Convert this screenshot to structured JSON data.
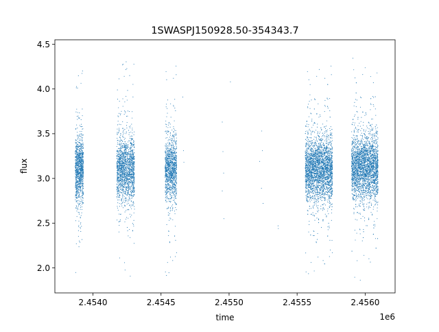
{
  "chart_data": {
    "type": "scatter",
    "title": "1SWASPJ150928.50-354343.7",
    "xlabel": "time",
    "ylabel": "flux",
    "x_offset_label": "1e6",
    "x_scale_factor": 1000000,
    "xlim": [
      2453720,
      2456220
    ],
    "ylim": [
      1.72,
      4.55
    ],
    "x_ticks": [
      2.454,
      2.4545,
      2.455,
      2.4555,
      2.456
    ],
    "x_tick_labels": [
      "2.4540",
      "2.4545",
      "2.4550",
      "2.4555",
      "2.4560"
    ],
    "y_ticks": [
      2.0,
      2.5,
      3.0,
      3.5,
      4.0,
      4.5
    ],
    "y_tick_labels": [
      "2.0",
      "2.5",
      "3.0",
      "3.5",
      "4.0",
      "4.5"
    ],
    "grid": false,
    "legend": "none",
    "marker_color": "#1f77b4",
    "observing_seasons": [
      {
        "time_start": 2453870,
        "time_end": 2453930,
        "flux_center": 3.1,
        "flux_low": 1.85,
        "flux_high": 4.32,
        "points": 1100
      },
      {
        "time_start": 2454175,
        "time_end": 2454305,
        "flux_center": 3.1,
        "flux_low": 1.82,
        "flux_high": 4.36,
        "points": 1700
      },
      {
        "time_start": 2454530,
        "time_end": 2454615,
        "flux_center": 3.1,
        "flux_low": 1.85,
        "flux_high": 4.38,
        "points": 1200
      },
      {
        "time_start": 2455560,
        "time_end": 2455760,
        "flux_center": 3.1,
        "flux_low": 1.87,
        "flux_high": 4.42,
        "points": 3200
      },
      {
        "time_start": 2455900,
        "time_end": 2456095,
        "flux_center": 3.12,
        "flux_low": 1.83,
        "flux_high": 4.4,
        "points": 3000
      }
    ],
    "isolated_points": [
      {
        "time": 2454660,
        "flux": 3.91
      },
      {
        "time": 2454665,
        "flux": 3.31
      },
      {
        "time": 2454668,
        "flux": 3.18
      },
      {
        "time": 2454950,
        "flux": 3.63
      },
      {
        "time": 2454955,
        "flux": 3.3
      },
      {
        "time": 2454960,
        "flux": 3.06
      },
      {
        "time": 2454950,
        "flux": 2.86
      },
      {
        "time": 2454962,
        "flux": 2.55
      },
      {
        "time": 2455225,
        "flux": 3.19
      },
      {
        "time": 2455240,
        "flux": 3.53
      },
      {
        "time": 2455245,
        "flux": 3.31
      },
      {
        "time": 2455238,
        "flux": 2.89
      },
      {
        "time": 2455250,
        "flux": 2.72
      },
      {
        "time": 2455360,
        "flux": 2.47
      },
      {
        "time": 2455362,
        "flux": 2.44
      },
      {
        "time": 2455010,
        "flux": 4.08
      }
    ]
  }
}
